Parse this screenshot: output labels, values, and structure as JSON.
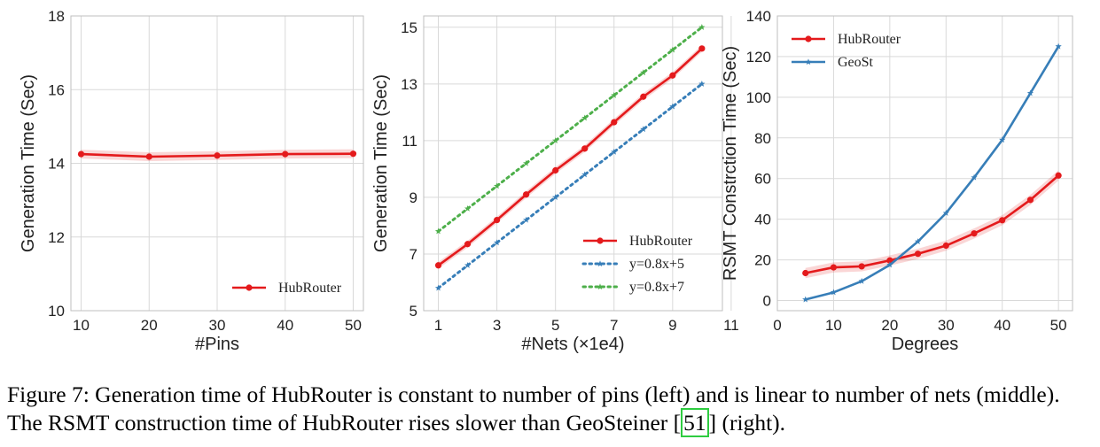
{
  "chart_data": [
    {
      "type": "line",
      "xlabel": "#Pins",
      "ylabel": "Generation Time (Sec)",
      "xlim": [
        8.5,
        51.5
      ],
      "ylim": [
        10,
        18
      ],
      "xticks": [
        10,
        20,
        30,
        40,
        50
      ],
      "yticks": [
        10,
        12,
        14,
        16,
        18
      ],
      "grid": true,
      "legend_position": "bottom-right",
      "series": [
        {
          "name": "HubRouter",
          "color": "#e41a1c",
          "style": "solid",
          "marker": "circle",
          "band": 0.12,
          "x": [
            10,
            20,
            30,
            40,
            50
          ],
          "y": [
            14.25,
            14.18,
            14.21,
            14.25,
            14.26
          ]
        }
      ]
    },
    {
      "type": "line",
      "xlabel": "#Nets (×1e4)",
      "ylabel": "Generation Time (Sec)",
      "xlim": [
        0.5,
        10.7
      ],
      "ylim": [
        5,
        15.4
      ],
      "xticks": [
        1,
        3,
        5,
        7,
        9,
        11
      ],
      "yticks": [
        5,
        7,
        9,
        11,
        13,
        15
      ],
      "grid": true,
      "legend_position": "bottom-right",
      "series": [
        {
          "name": "HubRouter",
          "color": "#e41a1c",
          "style": "solid",
          "marker": "circle",
          "band": 0.12,
          "x": [
            1,
            2,
            3,
            4,
            5,
            6,
            7,
            8,
            9,
            10
          ],
          "y": [
            6.6,
            7.35,
            8.2,
            9.1,
            9.95,
            10.72,
            11.65,
            12.55,
            13.3,
            14.25
          ]
        },
        {
          "name": "y=0.8x+5",
          "color": "#377eb8",
          "style": "dotted",
          "marker": "star",
          "x": [
            1,
            2,
            3,
            4,
            5,
            6,
            7,
            8,
            9,
            10
          ],
          "y": [
            5.8,
            6.6,
            7.4,
            8.2,
            9.0,
            9.8,
            10.6,
            11.4,
            12.2,
            13.0
          ]
        },
        {
          "name": "y=0.8x+7",
          "color": "#4daf4a",
          "style": "dotted",
          "marker": "star",
          "x": [
            1,
            2,
            3,
            4,
            5,
            6,
            7,
            8,
            9,
            10
          ],
          "y": [
            7.8,
            8.6,
            9.4,
            10.2,
            11.0,
            11.8,
            12.6,
            13.4,
            14.2,
            15.0
          ]
        }
      ]
    },
    {
      "type": "line",
      "xlabel": "Degrees",
      "ylabel": "RSMT Constrction Time (Sec)",
      "xlim": [
        0,
        52.5
      ],
      "ylim": [
        -5,
        140
      ],
      "xticks": [
        0,
        10,
        20,
        30,
        40,
        50
      ],
      "yticks": [
        0,
        20,
        40,
        60,
        80,
        100,
        120,
        140
      ],
      "grid": true,
      "legend_position": "top-left",
      "series": [
        {
          "name": "HubRouter",
          "color": "#e41a1c",
          "style": "solid",
          "marker": "circle",
          "band": 2.5,
          "x": [
            5,
            10,
            15,
            20,
            25,
            30,
            35,
            40,
            45,
            50
          ],
          "y": [
            13.5,
            16.3,
            16.8,
            19.7,
            23.0,
            27.0,
            33.0,
            39.5,
            49.5,
            61.5
          ]
        },
        {
          "name": "GeoSt",
          "color": "#377eb8",
          "style": "solid",
          "marker": "star",
          "x": [
            5,
            10,
            15,
            20,
            25,
            30,
            35,
            40,
            45,
            50
          ],
          "y": [
            0.5,
            4.0,
            9.5,
            17.5,
            29.0,
            43.0,
            60.5,
            79.0,
            102.0,
            125.0
          ]
        }
      ]
    }
  ],
  "caption": {
    "part1": "Figure 7: Generation time of HubRouter is constant to number of pins (left) and is linear to number of nets (middle). The RSMT construction time of HubRouter rises slower than GeoSteiner [",
    "ref": "51",
    "part2": "] (right)."
  }
}
